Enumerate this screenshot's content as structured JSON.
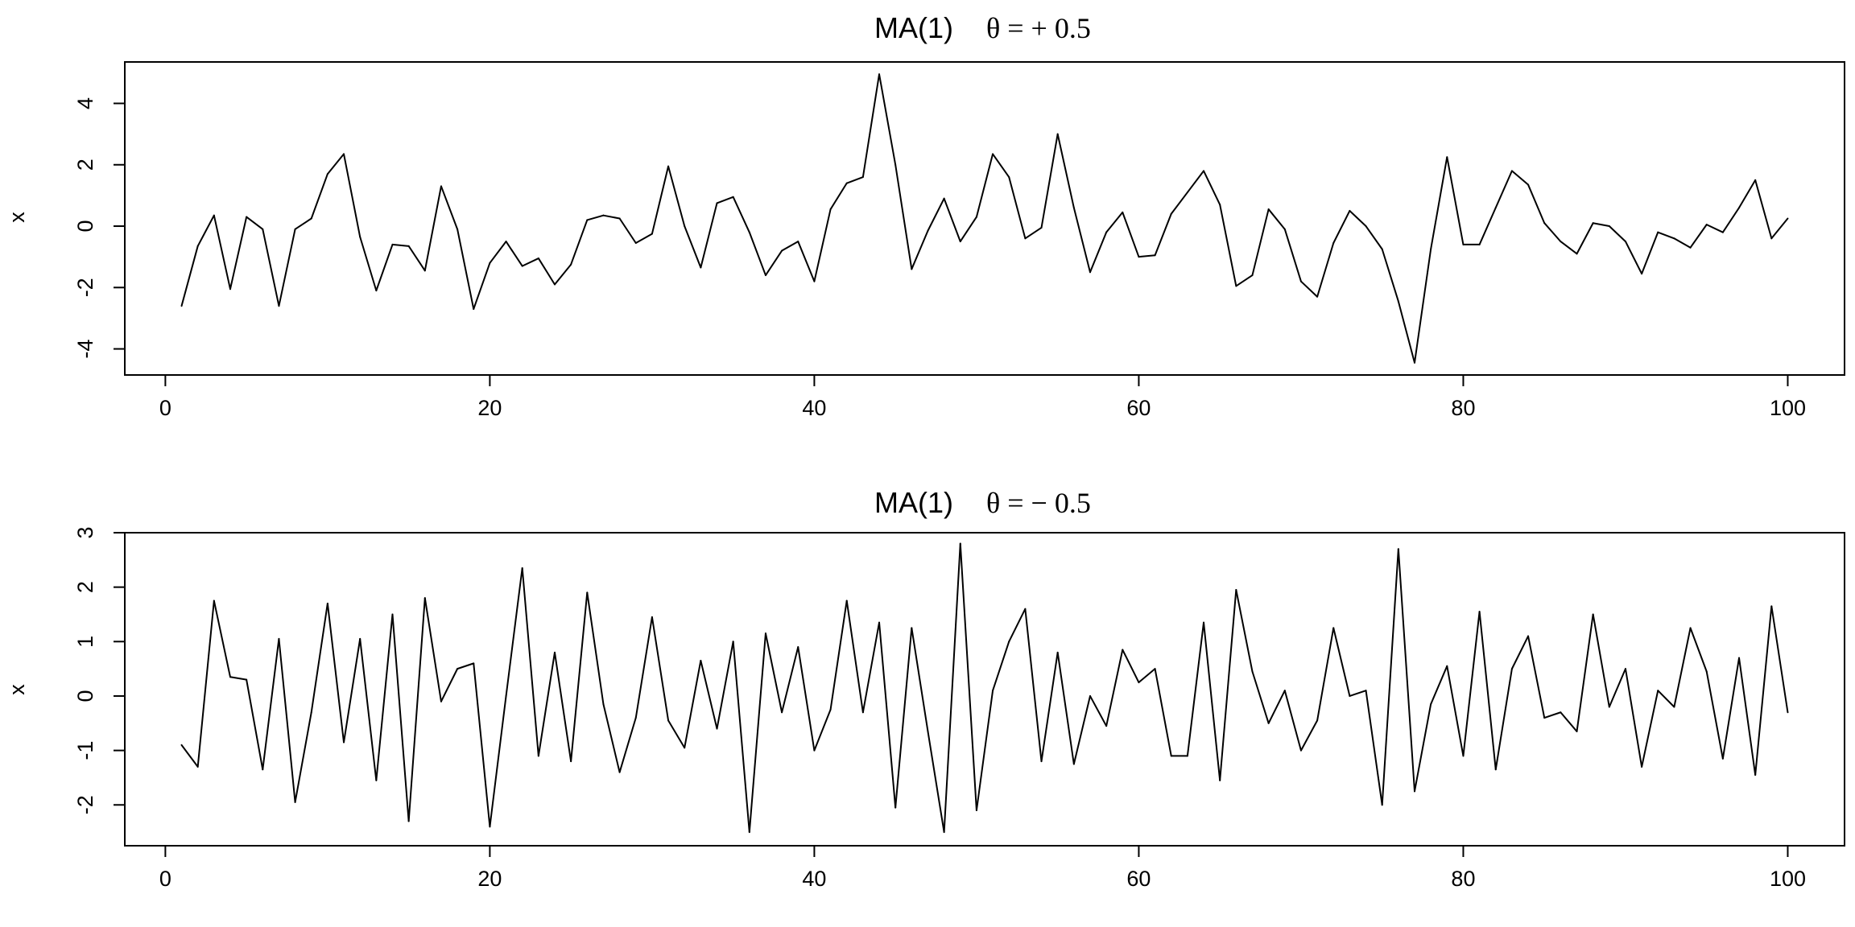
{
  "chart_data": [
    {
      "type": "line",
      "title": "MA(1)",
      "title_param": "θ = + 0.5",
      "xlabel": "",
      "ylabel": "x",
      "xlim": [
        -2.5,
        103.5
      ],
      "ylim": [
        -4.85,
        5.35
      ],
      "x_ticks": [
        0,
        20,
        40,
        60,
        80,
        100
      ],
      "y_ticks": [
        -4,
        -2,
        0,
        2,
        4
      ],
      "grid": false,
      "legend": "none",
      "series": [
        {
          "x": [
            1,
            2,
            3,
            4,
            5,
            6,
            7,
            8,
            9,
            10,
            11,
            12,
            13,
            14,
            15,
            16,
            17,
            18,
            19,
            20,
            21,
            22,
            23,
            24,
            25,
            26,
            27,
            28,
            29,
            30,
            31,
            32,
            33,
            34,
            35,
            36,
            37,
            38,
            39,
            40,
            41,
            42,
            43,
            44,
            45,
            46,
            47,
            48,
            49,
            50,
            51,
            52,
            53,
            54,
            55,
            56,
            57,
            58,
            59,
            60,
            61,
            62,
            63,
            64,
            65,
            66,
            67,
            68,
            69,
            70,
            71,
            72,
            73,
            74,
            75,
            76,
            77,
            78,
            79,
            80,
            81,
            82,
            83,
            84,
            85,
            86,
            87,
            88,
            89,
            90,
            91,
            92,
            93,
            94,
            95,
            96,
            97,
            98,
            99,
            100
          ],
          "values": [
            -2.6,
            -0.65,
            0.35,
            -2.05,
            0.3,
            -0.1,
            -2.6,
            -0.1,
            0.25,
            1.7,
            2.35,
            -0.35,
            -2.1,
            -0.6,
            -0.65,
            -1.45,
            1.3,
            -0.1,
            -2.7,
            -1.2,
            -0.5,
            -1.3,
            -1.05,
            -1.9,
            -1.25,
            0.2,
            0.35,
            0.25,
            -0.55,
            -0.25,
            1.95,
            0.0,
            -1.35,
            0.75,
            0.95,
            -0.2,
            -1.6,
            -0.8,
            -0.5,
            -1.8,
            0.55,
            1.4,
            1.6,
            4.95,
            2.0,
            -1.4,
            -0.15,
            0.9,
            -0.5,
            0.3,
            2.35,
            1.6,
            -0.4,
            -0.05,
            3.0,
            0.6,
            -1.5,
            -0.2,
            0.45,
            -1.0,
            -0.95,
            0.4,
            1.1,
            1.8,
            0.7,
            -1.95,
            -1.6,
            0.55,
            -0.1,
            -1.8,
            -2.3,
            -0.55,
            0.5,
            0.0,
            -0.75,
            -2.45,
            -4.45,
            -0.75,
            2.25,
            -0.6,
            -0.6,
            0.6,
            1.8,
            1.35,
            0.1,
            -0.5,
            -0.9,
            0.1,
            0.0,
            -0.5,
            -1.55,
            -0.2,
            -0.4,
            -0.7,
            0.05,
            -0.2,
            0.6,
            1.5,
            -0.4,
            0.25
          ]
        }
      ]
    },
    {
      "type": "line",
      "title": "MA(1)",
      "title_param": "θ = − 0.5",
      "xlabel": "",
      "ylabel": "x",
      "xlim": [
        -2.5,
        103.5
      ],
      "ylim": [
        -2.75,
        3.0
      ],
      "x_ticks": [
        0,
        20,
        40,
        60,
        80,
        100
      ],
      "y_ticks": [
        -2,
        -1,
        0,
        1,
        2,
        3
      ],
      "grid": false,
      "legend": "none",
      "series": [
        {
          "x": [
            1,
            2,
            3,
            4,
            5,
            6,
            7,
            8,
            9,
            10,
            11,
            12,
            13,
            14,
            15,
            16,
            17,
            18,
            19,
            20,
            21,
            22,
            23,
            24,
            25,
            26,
            27,
            28,
            29,
            30,
            31,
            32,
            33,
            34,
            35,
            36,
            37,
            38,
            39,
            40,
            41,
            42,
            43,
            44,
            45,
            46,
            47,
            48,
            49,
            50,
            51,
            52,
            53,
            54,
            55,
            56,
            57,
            58,
            59,
            60,
            61,
            62,
            63,
            64,
            65,
            66,
            67,
            68,
            69,
            70,
            71,
            72,
            73,
            74,
            75,
            76,
            77,
            78,
            79,
            80,
            81,
            82,
            83,
            84,
            85,
            86,
            87,
            88,
            89,
            90,
            91,
            92,
            93,
            94,
            95,
            96,
            97,
            98,
            99,
            100
          ],
          "values": [
            -0.9,
            -1.3,
            1.75,
            0.35,
            0.3,
            -1.35,
            1.05,
            -1.95,
            -0.3,
            1.7,
            -0.85,
            1.05,
            -1.55,
            1.5,
            -2.3,
            1.8,
            -0.1,
            0.5,
            0.6,
            -2.4,
            0.0,
            2.35,
            -1.1,
            0.8,
            -1.2,
            1.9,
            -0.15,
            -1.4,
            -0.4,
            1.45,
            -0.45,
            -0.95,
            0.65,
            -0.6,
            1.0,
            -2.5,
            1.15,
            -0.3,
            0.9,
            -1.0,
            -0.25,
            1.75,
            -0.3,
            1.35,
            -2.05,
            1.25,
            -0.65,
            -2.5,
            2.8,
            -2.1,
            0.1,
            1.0,
            1.6,
            -1.2,
            0.8,
            -1.25,
            0.0,
            -0.55,
            0.85,
            0.25,
            0.5,
            -1.1,
            -1.1,
            1.35,
            -1.55,
            1.95,
            0.45,
            -0.5,
            0.1,
            -1.0,
            -0.45,
            1.25,
            0.0,
            0.1,
            -2.0,
            2.7,
            -1.75,
            -0.15,
            0.55,
            -1.1,
            1.55,
            -1.35,
            0.5,
            1.1,
            -0.4,
            -0.3,
            -0.65,
            1.5,
            -0.2,
            0.5,
            -1.3,
            0.1,
            -0.2,
            1.25,
            0.45,
            -1.15,
            0.7,
            -1.45,
            1.65,
            -0.3
          ]
        }
      ]
    }
  ]
}
